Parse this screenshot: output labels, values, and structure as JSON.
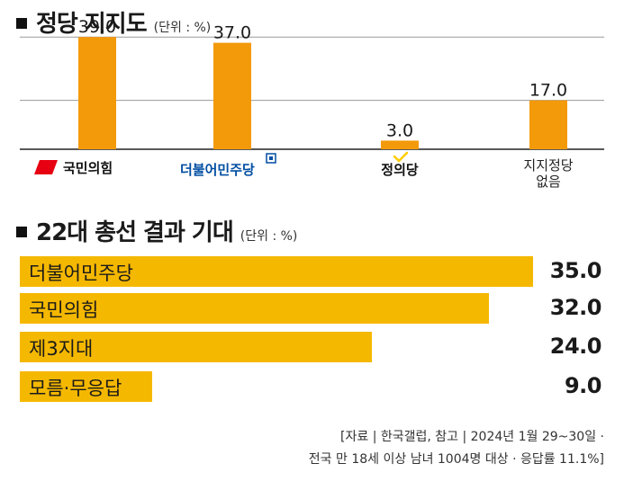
{
  "section1": {
    "title": "정당 지지도",
    "unit": "(단위 : %)"
  },
  "section2": {
    "title": "22대 총선 결과 기대",
    "unit": "(단위 : %)"
  },
  "colors": {
    "bar_vertical": "#f39a0a",
    "bar_horizontal": "#f5b800",
    "grid": "#9a9a9a",
    "ppp_red": "#e60012",
    "dem_blue": "#004ea2",
    "justice_yellow": "#ffcc00"
  },
  "chart_data": [
    {
      "type": "bar",
      "orientation": "vertical",
      "title": "정당 지지도",
      "unit": "(단위 : %)",
      "categories": [
        "국민의힘",
        "더불어민주당",
        "정의당",
        "지지정당 없음"
      ],
      "category_lines": [
        [
          "국민의힘"
        ],
        [
          "더불어민주당"
        ],
        [
          "정의당"
        ],
        [
          "지지정당",
          "없음"
        ]
      ],
      "values": [
        39.0,
        37.0,
        3.0,
        17.0
      ],
      "value_labels": [
        "39.0",
        "37.0",
        "3.0",
        "17.0"
      ],
      "ylim": [
        0,
        45
      ],
      "grid": true,
      "gridlines": [
        17.0,
        39.0
      ]
    },
    {
      "type": "bar",
      "orientation": "horizontal",
      "title": "22대 총선 결과 기대",
      "unit": "(단위 : %)",
      "categories": [
        "더불어민주당",
        "국민의힘",
        "제3지대",
        "모름·무응답"
      ],
      "values": [
        35.0,
        32.0,
        24.0,
        9.0
      ],
      "value_labels": [
        "35.0",
        "32.0",
        "24.0",
        "9.0"
      ],
      "xlim": [
        0,
        35
      ]
    }
  ],
  "source": {
    "line1": "[자료 | 한국갤럽, 참고 | 2024년 1월 29~30일 ·",
    "line2": "전국 만 18세 이상 남녀 1004명 대상 · 응답률 11.1%]"
  }
}
